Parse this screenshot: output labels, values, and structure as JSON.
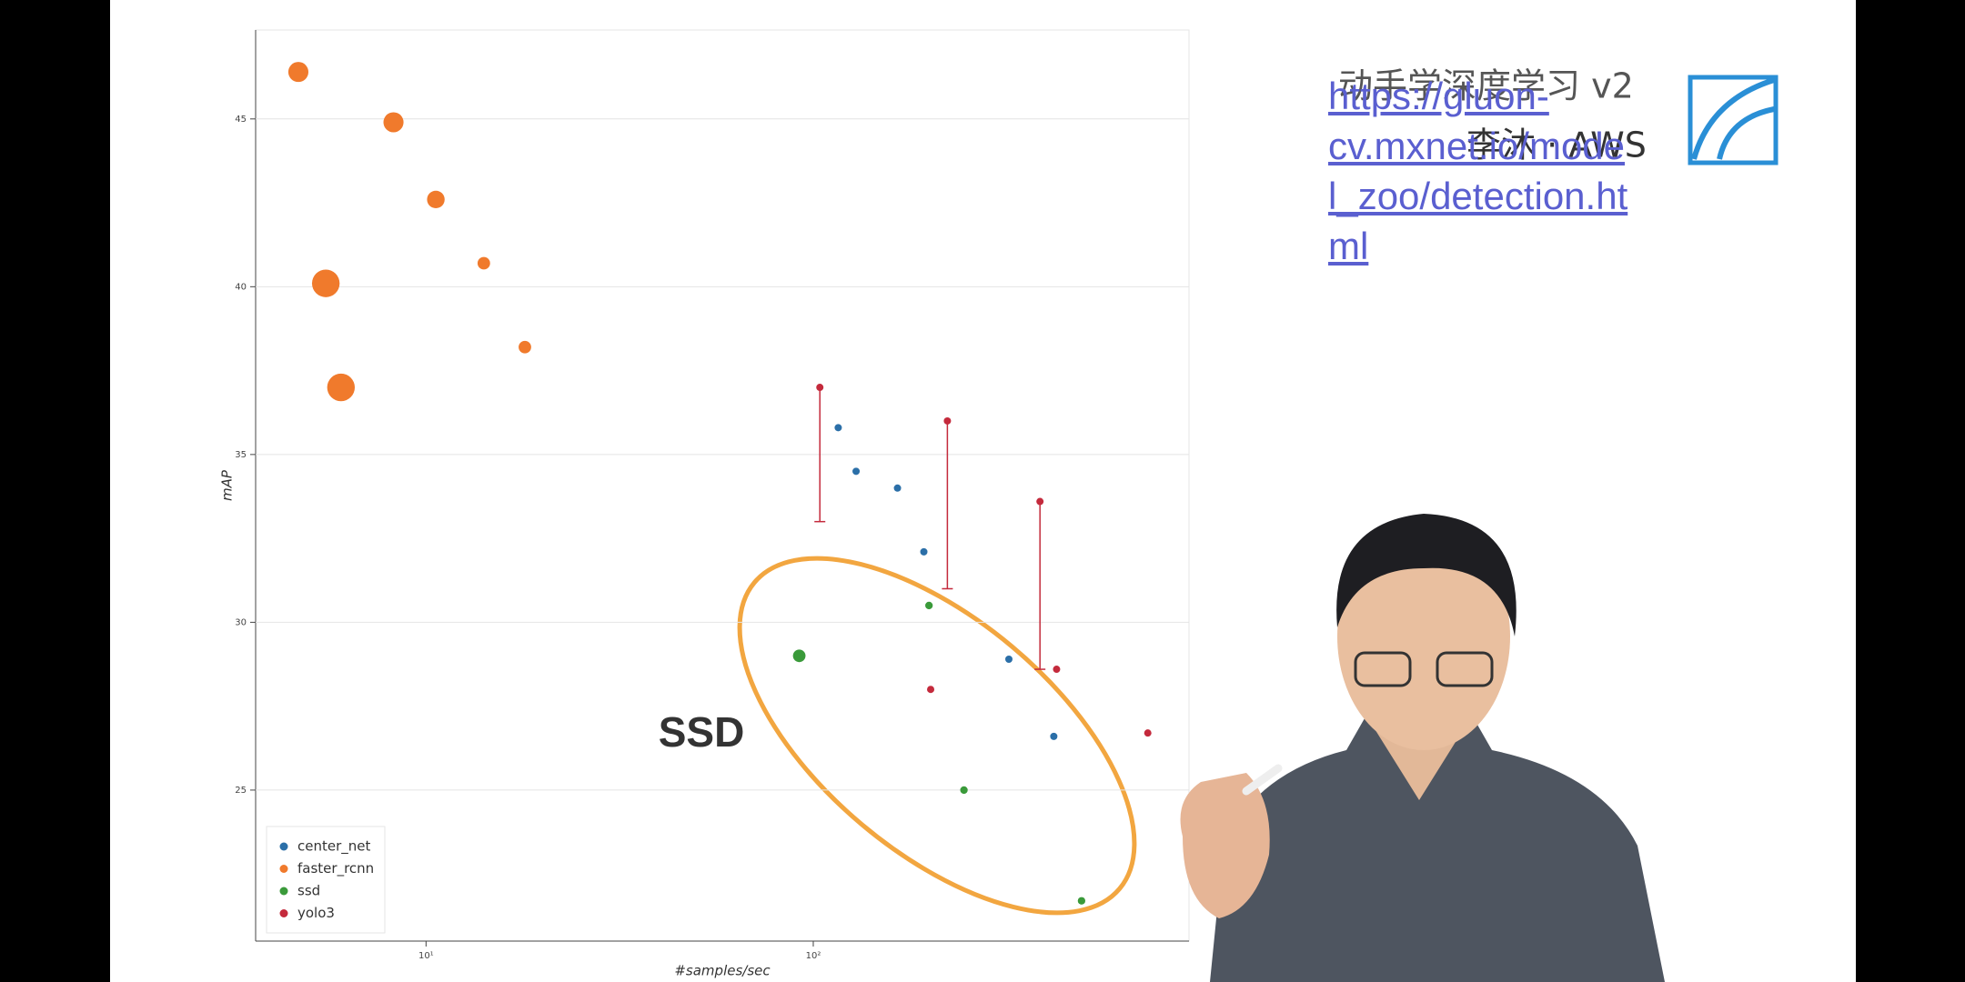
{
  "chart_data": {
    "type": "scatter",
    "x_label": "#samples/sec",
    "y_label": "mAP",
    "xscale": "log",
    "xlim": [
      3.63,
      934
    ],
    "ylim": [
      20.5,
      47.65
    ],
    "xticks": [
      {
        "value": 10,
        "label": "10¹"
      },
      {
        "value": 100,
        "label": "10²"
      }
    ],
    "yticks": [
      25,
      30,
      35,
      40,
      45
    ],
    "grid": true,
    "legend": "lower left",
    "annotation": "SSD",
    "series": [
      {
        "name": "center_net",
        "color": "#2b6fa8",
        "x": [
          116,
          129,
          165,
          193,
          320,
          418
        ],
        "values": [
          35.8,
          34.5,
          34.0,
          32.1,
          28.9,
          26.6
        ]
      },
      {
        "name": "faster_rcnn",
        "color": "#f07a2c",
        "x": [
          4.68,
          8.24,
          10.6,
          14.1,
          5.51,
          18.0,
          6.03
        ],
        "values": [
          46.4,
          44.9,
          42.6,
          40.7,
          40.1,
          38.2,
          37.0
        ],
        "sizes": [
          8,
          8,
          7,
          5,
          11,
          5,
          11
        ]
      },
      {
        "name": "ssd",
        "color": "#3a9a3a",
        "x": [
          92,
          199,
          245,
          493
        ],
        "values": [
          29.0,
          30.5,
          25.0,
          21.7
        ],
        "sizes": [
          5,
          3,
          3,
          3
        ]
      },
      {
        "name": "yolo3",
        "color": "#c42a3c",
        "x": [
          104,
          222,
          385,
          201,
          425,
          731
        ],
        "values": [
          37.0,
          36.0,
          33.6,
          28.0,
          28.6,
          26.7
        ],
        "errors": [
          4.0,
          5.0,
          5.0,
          null,
          null,
          null
        ]
      }
    ]
  },
  "overlay": {
    "course_title": "动手学深度学习 v2",
    "course_author": "李沐 · AWS",
    "link": "https://gluon-cv.mxnet.io/model_zoo/detection.html"
  }
}
